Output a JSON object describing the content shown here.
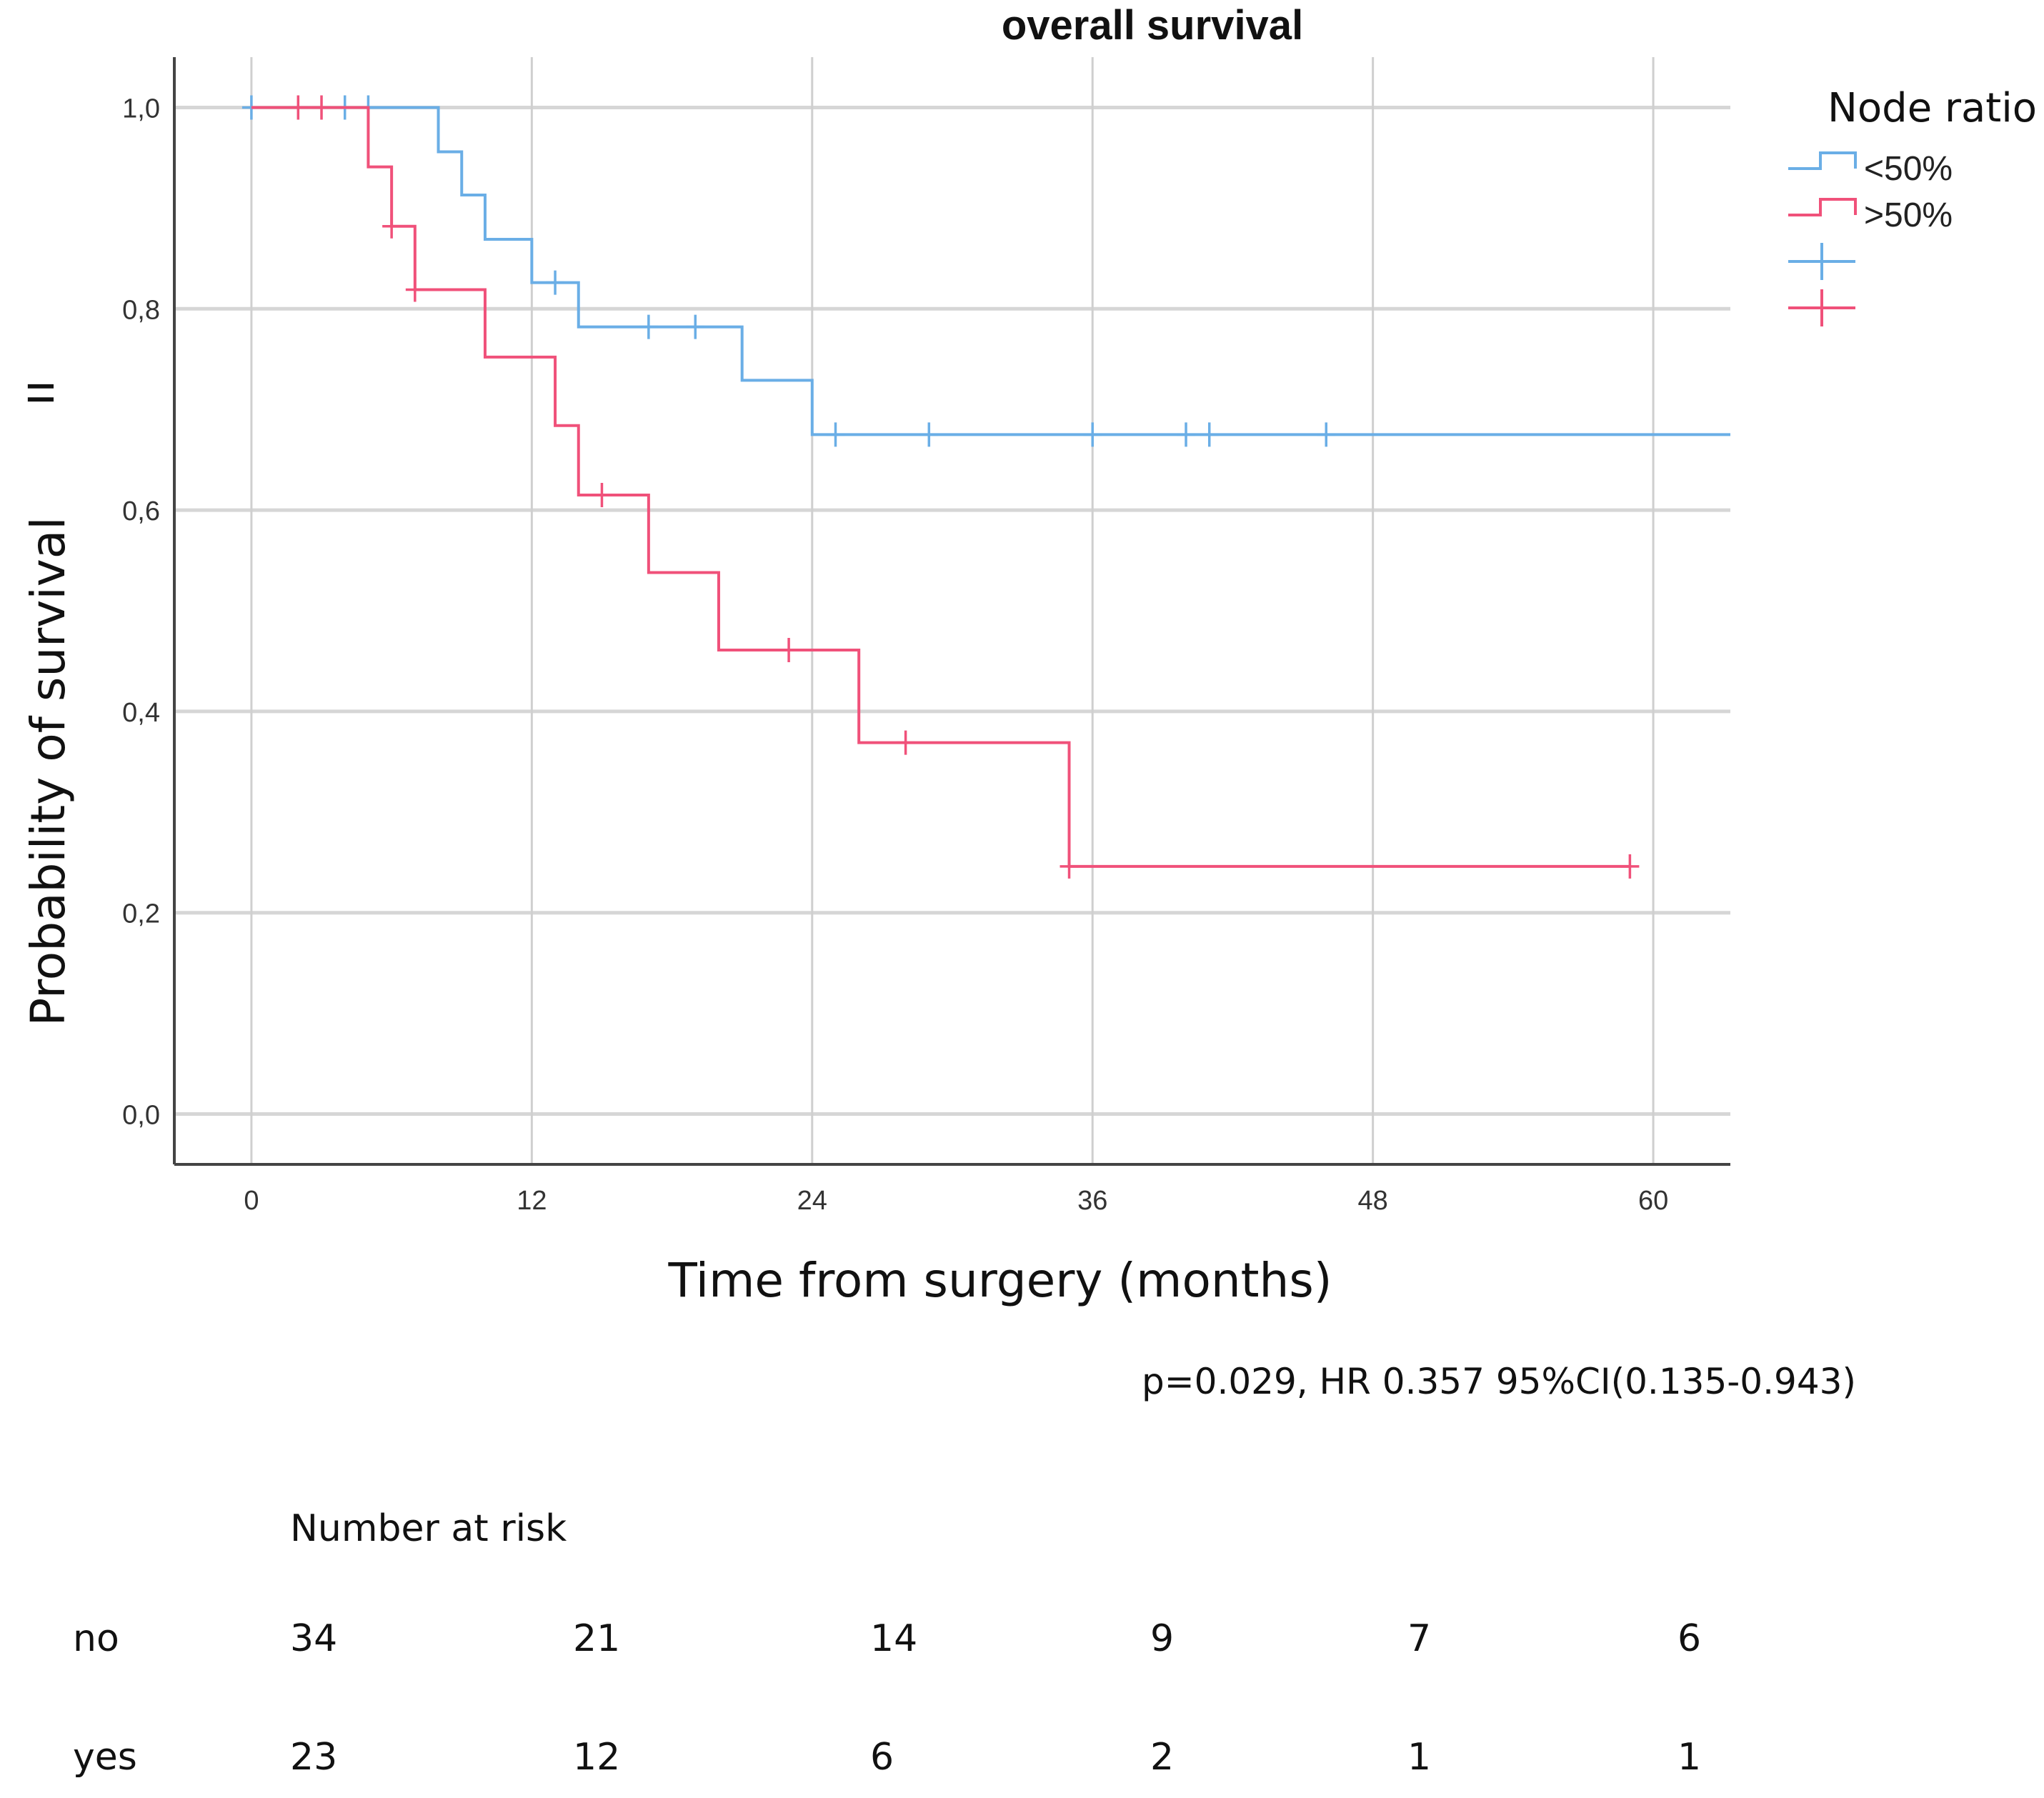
{
  "chart_data": {
    "type": "line",
    "subtype": "kaplan-meier step",
    "title": "overall survival",
    "xlabel": "Time from surgery (months)",
    "ylabel": "Probability of survival",
    "ylabel_extra_glyph": "ıı",
    "xlim": [
      -3.3,
      63.3
    ],
    "ylim": [
      -0.05,
      1.05
    ],
    "xticks": [
      0,
      12,
      24,
      36,
      48,
      60
    ],
    "xtick_labels": [
      "0",
      "12",
      "24",
      "36",
      "48",
      "60"
    ],
    "yticks": [
      0.0,
      0.2,
      0.4,
      0.6,
      0.8,
      1.0
    ],
    "ytick_labels": [
      "0,0",
      "0,2",
      "0,4",
      "0,6",
      "0,8",
      "1,0"
    ],
    "grid": true,
    "legend": {
      "title": "Node ratio",
      "position": "top-right, outside plot",
      "entries": [
        "<50%",
        ">50%",
        "",
        ""
      ]
    },
    "series": [
      {
        "name": "<50%",
        "color": "#6aaee6",
        "steps": [
          [
            0,
            1.0
          ],
          [
            8,
            0.956
          ],
          [
            9,
            0.913
          ],
          [
            10,
            0.869
          ],
          [
            12,
            0.826
          ],
          [
            14,
            0.782
          ],
          [
            21,
            0.729
          ],
          [
            24,
            0.675
          ]
        ],
        "end_x": 63.3,
        "censored": [
          [
            0,
            1.0
          ],
          [
            4,
            1.0
          ],
          [
            5,
            1.0
          ],
          [
            13,
            0.826
          ],
          [
            17,
            0.782
          ],
          [
            19,
            0.782
          ],
          [
            25,
            0.675
          ],
          [
            29,
            0.675
          ],
          [
            36,
            0.675
          ],
          [
            40,
            0.675
          ],
          [
            41,
            0.675
          ],
          [
            46,
            0.675
          ]
        ]
      },
      {
        "name": ">50%",
        "color": "#f0517a",
        "steps": [
          [
            0,
            1.0
          ],
          [
            5,
            0.941
          ],
          [
            6,
            0.882
          ],
          [
            7,
            0.819
          ],
          [
            10,
            0.752
          ],
          [
            13,
            0.684
          ],
          [
            14,
            0.615
          ],
          [
            17,
            0.538
          ],
          [
            20,
            0.461
          ],
          [
            26,
            0.369
          ],
          [
            35,
            0.246
          ]
        ],
        "end_x": 59,
        "censored": [
          [
            2,
            1.0
          ],
          [
            3,
            1.0
          ],
          [
            6,
            0.882
          ],
          [
            7,
            0.819
          ],
          [
            15,
            0.615
          ],
          [
            23,
            0.461
          ],
          [
            28,
            0.369
          ],
          [
            35,
            0.246
          ],
          [
            59,
            0.246
          ]
        ]
      }
    ],
    "annotation": "p=0.029, HR 0.357 95%CI(0.135-0.943)",
    "risk_table": {
      "title": "Number at risk",
      "rows": [
        {
          "label": "no",
          "values": [
            "34",
            "21",
            "14",
            "9",
            "7",
            "6"
          ]
        },
        {
          "label": "yes",
          "values": [
            "23",
            "12",
            "6",
            "2",
            "1",
            "1"
          ]
        }
      ]
    }
  }
}
